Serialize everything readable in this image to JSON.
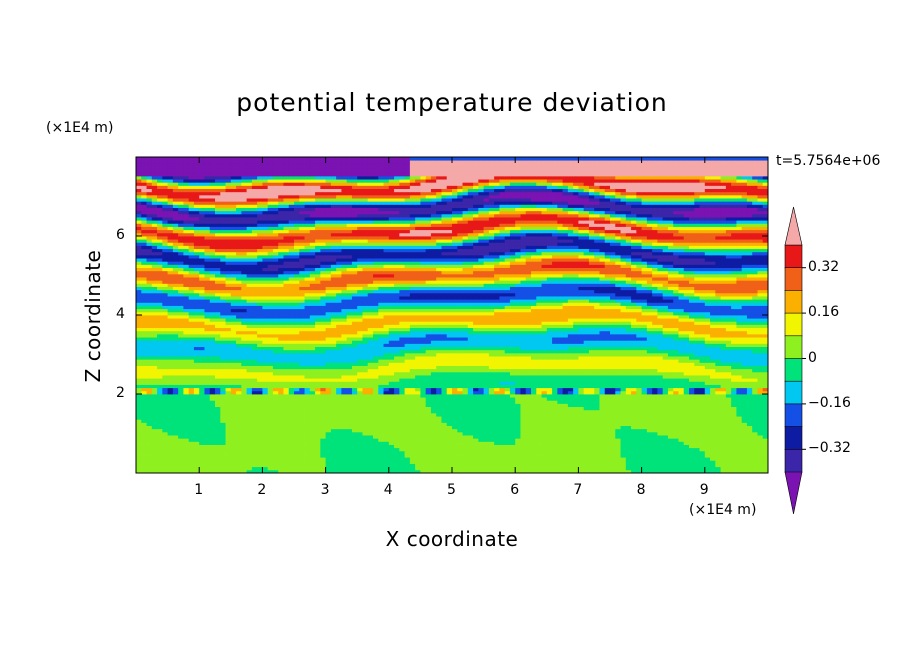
{
  "chart_data": {
    "type": "heatmap",
    "title": "potential temperature deviation",
    "xlabel": "X coordinate",
    "ylabel": "Z coordinate",
    "x_unit": "(×1E4 m)",
    "y_unit": "(×1E4 m)",
    "time_label": "t=5.7564e+06",
    "xlim": [
      0,
      10
    ],
    "ylim": [
      0,
      8
    ],
    "x_ticks": [
      "1",
      "2",
      "3",
      "4",
      "5",
      "6",
      "7",
      "8",
      "9"
    ],
    "y_ticks": [
      "2",
      "4",
      "6"
    ],
    "colorbar": {
      "tick_labels": [
        "0.32",
        "0.16",
        "0",
        "−0.16",
        "−0.32"
      ],
      "tick_values": [
        0.32,
        0.16,
        0,
        -0.16,
        -0.32
      ],
      "levels": [
        -0.4,
        -0.32,
        -0.24,
        -0.16,
        -0.08,
        0,
        0.08,
        0.16,
        0.24,
        0.32,
        0.4
      ],
      "colors": [
        "#7b13b3",
        "#3b25a8",
        "#0e1ca3",
        "#1450e6",
        "#00c8f0",
        "#00e27a",
        "#8ff020",
        "#f2f500",
        "#fbb000",
        "#f06018",
        "#e81818",
        "#f4a8a8"
      ]
    }
  }
}
